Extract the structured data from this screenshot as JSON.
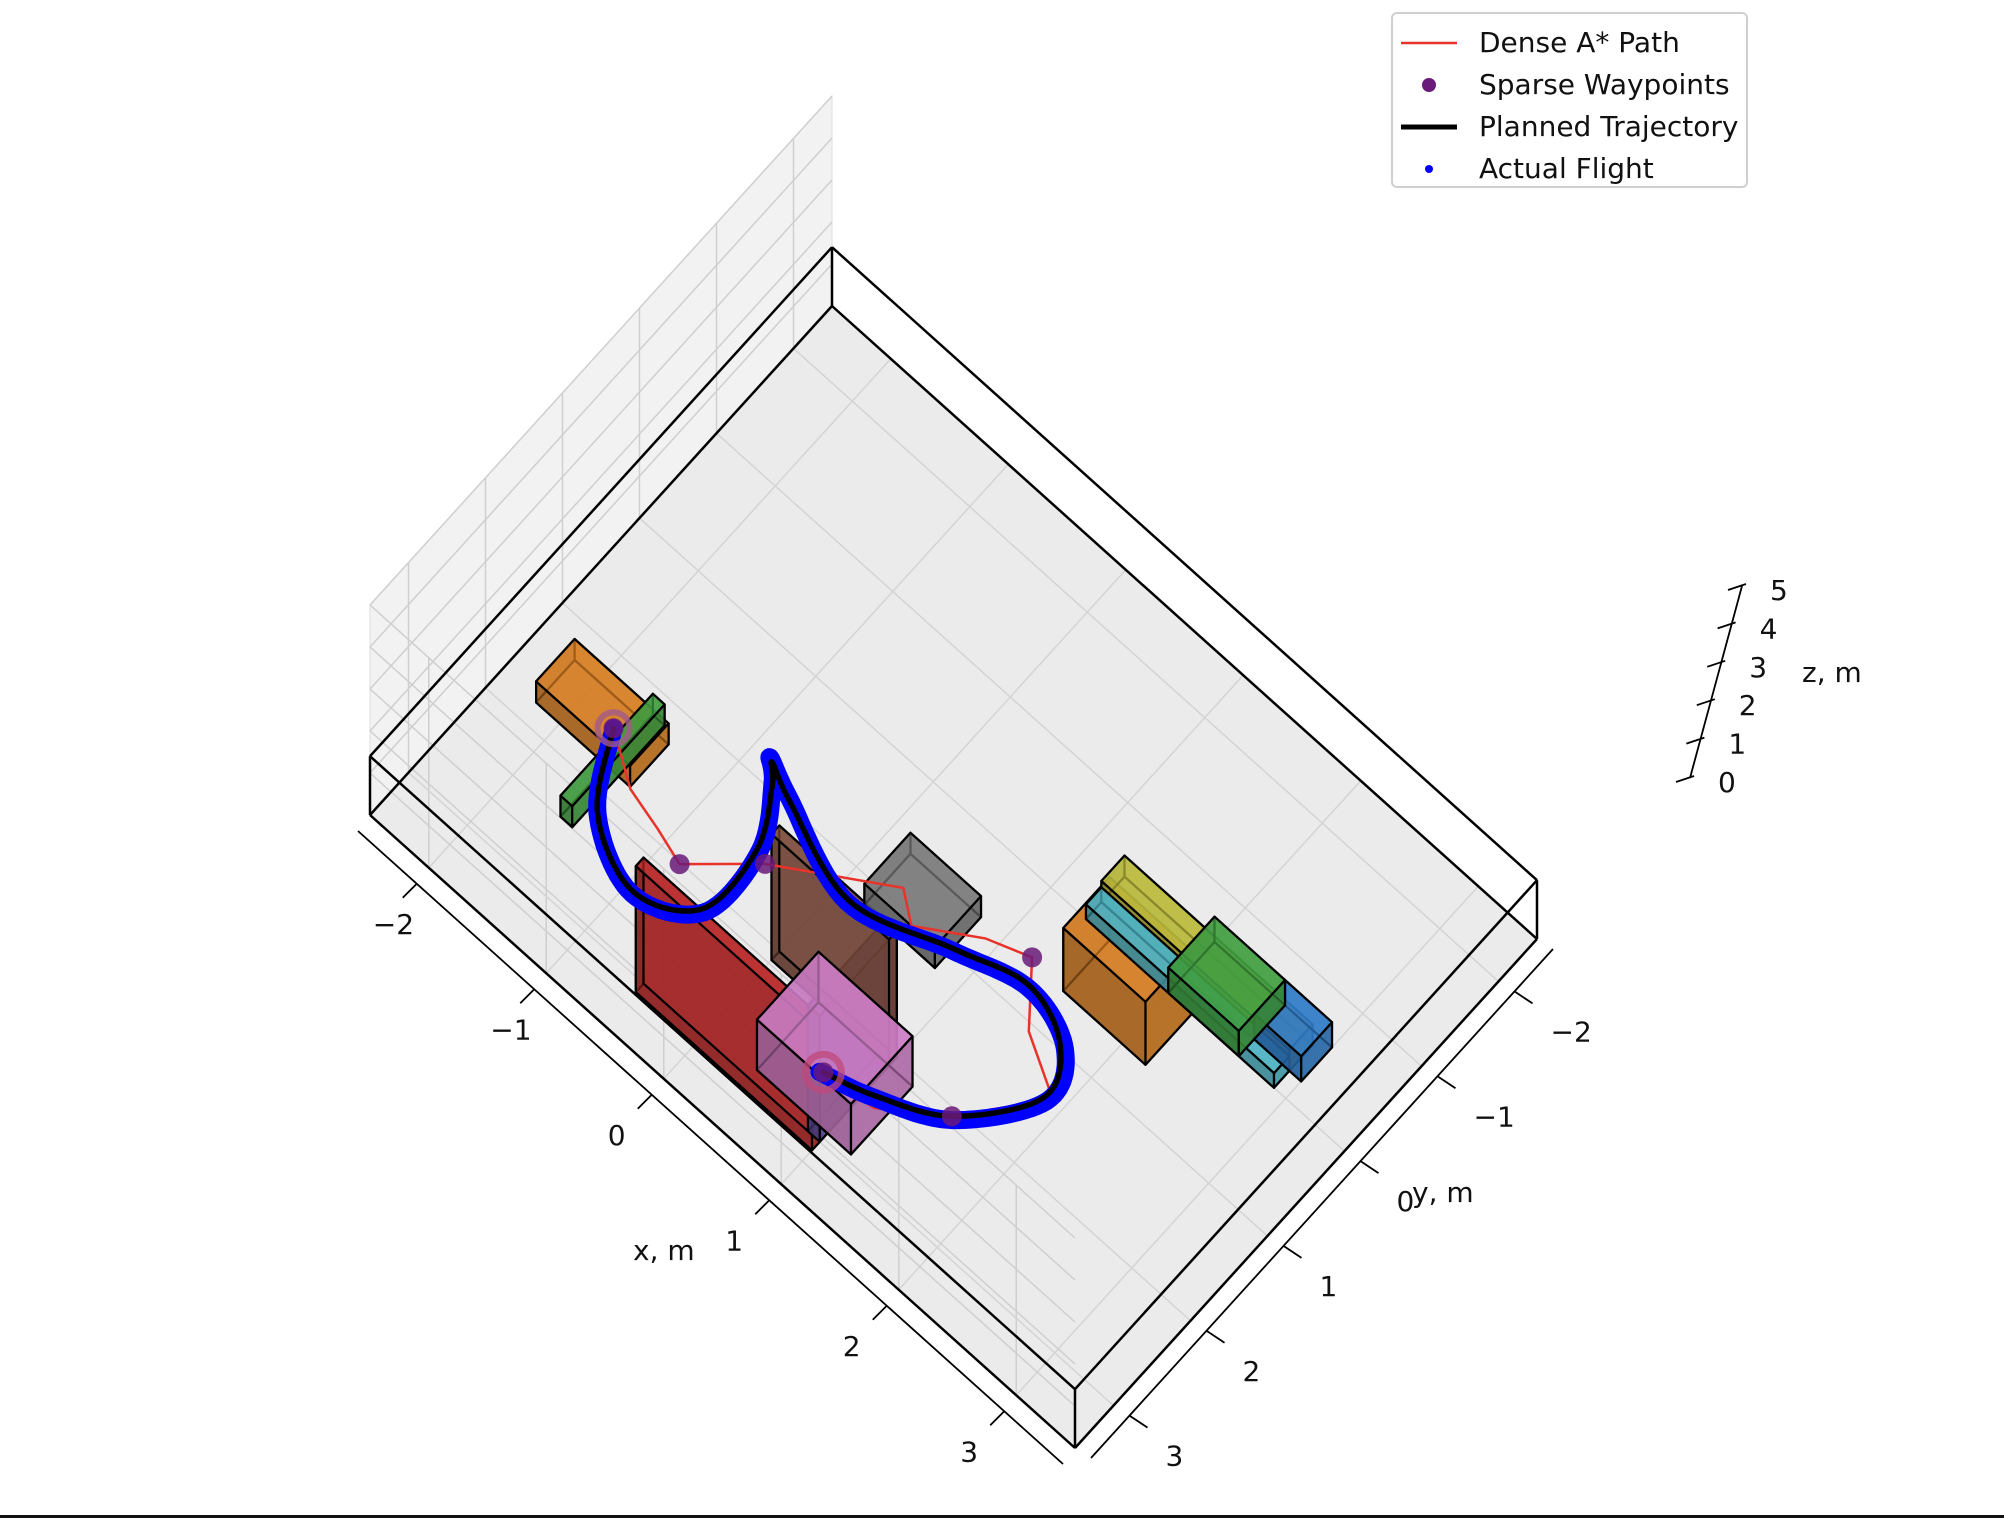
{
  "chart_data": {
    "type": "scatter",
    "subtype": "3d-path-plan",
    "title": "",
    "xlabel": "x, m",
    "ylabel": "y, m",
    "zlabel": "z, m",
    "xlim": [
      -2.5,
      3.5
    ],
    "ylim": [
      -2.5,
      3.5
    ],
    "zlim": [
      0,
      5
    ],
    "x_ticks": [
      "−2",
      "−1",
      "0",
      "1",
      "2",
      "3"
    ],
    "y_ticks": [
      "−2",
      "−1",
      "0",
      "1",
      "2",
      "3"
    ],
    "z_ticks": [
      "0",
      "1",
      "2",
      "3",
      "4",
      "5"
    ],
    "grid": true,
    "legend_position": "top-right",
    "legend": [
      {
        "label": "Dense A* Path",
        "kind": "line",
        "color": "#e8332a"
      },
      {
        "label": "Sparse Waypoints",
        "kind": "dot",
        "color": "#6a1a78"
      },
      {
        "label": "Planned Trajectory",
        "kind": "thick-line",
        "color": "#000000"
      },
      {
        "label": "Actual Flight",
        "kind": "small-dot",
        "color": "#0000ff"
      }
    ],
    "series": [
      {
        "name": "Dense A* Path",
        "color": "#e8332a",
        "points": [
          [
            -1.62,
            1.68,
            0.6
          ],
          [
            -1.3,
            1.95,
            0.5
          ],
          [
            -1.0,
            2.05,
            0.5
          ],
          [
            -0.75,
            2.15,
            0.5
          ],
          [
            -0.35,
            1.65,
            0.5
          ],
          [
            0.4,
            1.0,
            0.5
          ],
          [
            0.6,
            1.2,
            0.5
          ],
          [
            1.0,
            0.85,
            0.5
          ],
          [
            1.3,
            0.7,
            0.5
          ],
          [
            1.6,
            1.2,
            0.5
          ],
          [
            2.0,
            1.5,
            0.5
          ],
          [
            1.6,
            2.2,
            0.5
          ],
          [
            1.2,
            2.6,
            0.5
          ],
          [
            0.9,
            2.8,
            1.0
          ]
        ]
      },
      {
        "name": "Sparse Waypoints",
        "color": "#6a1a78",
        "points": [
          [
            -1.62,
            1.68,
            0.6
          ],
          [
            -0.75,
            2.15,
            0.5
          ],
          [
            -0.35,
            1.65,
            0.5
          ],
          [
            1.3,
            0.7,
            0.5
          ],
          [
            1.6,
            2.2,
            0.5
          ],
          [
            0.9,
            2.8,
            1.0
          ]
        ]
      },
      {
        "name": "Planned Trajectory",
        "color": "#000000",
        "points": [
          [
            -1.62,
            1.68,
            0.6
          ],
          [
            -1.35,
            2.3,
            0.5
          ],
          [
            -0.85,
            2.6,
            0.5
          ],
          [
            -0.45,
            2.3,
            0.5
          ],
          [
            -0.45,
            1.6,
            0.5
          ],
          [
            -0.65,
            1.1,
            0.5
          ],
          [
            -0.75,
            0.95,
            0.5
          ],
          [
            -0.5,
            1.1,
            0.5
          ],
          [
            0.2,
            1.4,
            0.5
          ],
          [
            0.9,
            1.1,
            0.5
          ],
          [
            1.4,
            0.9,
            0.5
          ],
          [
            1.8,
            1.1,
            0.5
          ],
          [
            1.95,
            1.55,
            0.5
          ],
          [
            1.6,
            2.2,
            0.5
          ],
          [
            1.2,
            2.6,
            0.8
          ],
          [
            0.9,
            2.8,
            1.0
          ]
        ]
      },
      {
        "name": "Actual Flight",
        "color": "#0000ff",
        "points": [
          [
            -1.62,
            1.68,
            0.6
          ],
          [
            -1.35,
            2.3,
            0.5
          ],
          [
            -0.85,
            2.62,
            0.5
          ],
          [
            -0.43,
            2.32,
            0.5
          ],
          [
            -0.43,
            1.6,
            0.5
          ],
          [
            -0.66,
            1.08,
            0.5
          ],
          [
            -0.78,
            0.93,
            0.5
          ],
          [
            -0.52,
            1.08,
            0.5
          ],
          [
            0.2,
            1.42,
            0.5
          ],
          [
            0.9,
            1.12,
            0.5
          ],
          [
            1.42,
            0.92,
            0.5
          ],
          [
            1.84,
            1.1,
            0.5
          ],
          [
            1.98,
            1.55,
            0.5
          ],
          [
            1.62,
            2.22,
            0.5
          ],
          [
            1.2,
            2.62,
            0.8
          ],
          [
            0.88,
            2.82,
            1.0
          ]
        ]
      }
    ],
    "obstacles": [
      {
        "name": "orange-block-start",
        "color": "#d17a1f",
        "x": [
          -2.2,
          -1.4
        ],
        "y": [
          1.3,
          1.8
        ],
        "z": [
          0,
          0.5
        ]
      },
      {
        "name": "green-panel-start",
        "color": "#3f9a3f",
        "x": [
          -1.6,
          -1.5
        ],
        "y": [
          1.2,
          2.4
        ],
        "z": [
          0,
          0.5
        ]
      },
      {
        "name": "red-wall",
        "color": "#b22222",
        "x": [
          -0.5,
          1.0
        ],
        "y": [
          3.0,
          3.1
        ],
        "z": [
          0,
          3.0
        ]
      },
      {
        "name": "purple-wall",
        "color": "#5a4a9a",
        "x": [
          0.9,
          1.0
        ],
        "y": [
          2.0,
          3.0
        ],
        "z": [
          0,
          3.0
        ]
      },
      {
        "name": "brown-wall",
        "color": "#7a4a3a",
        "x": [
          0.0,
          1.0
        ],
        "y": [
          2.0,
          2.1
        ],
        "z": [
          0,
          3.0
        ]
      },
      {
        "name": "pink-cube",
        "color": "#c77abf",
        "x": [
          0.4,
          1.2
        ],
        "y": [
          2.1,
          2.9
        ],
        "z": [
          0,
          1.2
        ]
      },
      {
        "name": "gray-box",
        "color": "#777777",
        "x": [
          0.2,
          0.8
        ],
        "y": [
          0.6,
          1.2
        ],
        "z": [
          0,
          0.5
        ]
      },
      {
        "name": "orange-block-tall",
        "color": "#d17a1f",
        "x": [
          1.5,
          2.2
        ],
        "y": [
          0.0,
          0.6
        ],
        "z": [
          0,
          1.5
        ]
      },
      {
        "name": "yellow-green-beam",
        "color": "#b5b53a",
        "x": [
          1.3,
          2.9
        ],
        "y": [
          -0.5,
          -0.2
        ],
        "z": [
          0,
          0.5
        ]
      },
      {
        "name": "cyan-beam",
        "color": "#4aaec0",
        "x": [
          1.3,
          2.9
        ],
        "y": [
          -0.2,
          0.0
        ],
        "z": [
          0,
          0.35
        ]
      },
      {
        "name": "blue-block",
        "color": "#2f78c2",
        "x": [
          2.6,
          3.0
        ],
        "y": [
          -0.6,
          -0.2
        ],
        "z": [
          0,
          0.6
        ]
      },
      {
        "name": "green-box-right",
        "color": "#3f9a3f",
        "x": [
          2.0,
          2.6
        ],
        "y": [
          -0.6,
          0.0
        ],
        "z": [
          0,
          0.6
        ]
      }
    ],
    "bounds": {
      "x": [
        -2.5,
        3.5
      ],
      "y": [
        -2.5,
        3.5
      ],
      "z": [
        0,
        5
      ]
    }
  }
}
